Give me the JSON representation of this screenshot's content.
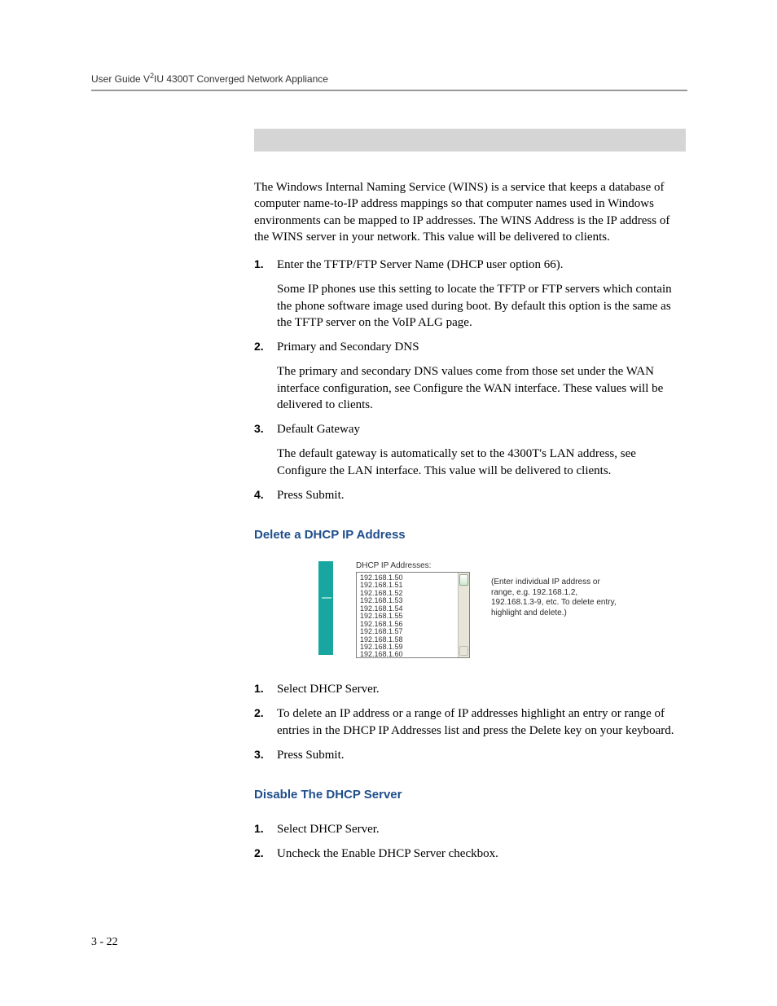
{
  "header": {
    "prefix": "User Guide V",
    "sup": "2",
    "suffix": "IU 4300T Converged Network Appliance"
  },
  "intro": {
    "wins_para": "The Windows Internal Naming Service (WINS) is a service that keeps a database of computer name-to-IP address mappings so that computer names used in Windows environments can be mapped to IP addresses. The WINS Address is the IP address of the WINS server in your network. This value will be delivered to clients."
  },
  "list_a": [
    {
      "num": "1.",
      "paras": [
        "Enter the TFTP/FTP Server Name (DHCP user option 66).",
        "Some IP phones use this setting to locate the TFTP or FTP servers which contain the phone software image used during boot.  By default this option is the same as the TFTP server on the VoIP ALG page."
      ]
    },
    {
      "num": "2.",
      "paras": [
        "Primary and Secondary DNS",
        "The primary and secondary DNS values come from those set under the WAN interface configuration, see Configure the WAN interface. These values will be delivered to clients."
      ]
    },
    {
      "num": "3.",
      "paras": [
        "Default Gateway",
        "The default gateway is automatically set to the 4300T's LAN address, see Configure the LAN interface.  This value will be delivered to clients."
      ]
    },
    {
      "num": "4.",
      "paras": [
        "Press Submit."
      ]
    }
  ],
  "section_delete": {
    "heading": "Delete a DHCP IP Address",
    "listbox_label": "DHCP IP Addresses:",
    "ips": [
      "192.168.1.50",
      "192.168.1.51",
      "192.168.1.52",
      "192.168.1.53",
      "192.168.1.54",
      "192.168.1.55",
      "192.168.1.56",
      "192.168.1.57",
      "192.168.1.58",
      "192.168.1.59",
      "192.168.1.60"
    ],
    "caption": "(Enter individual IP address or range, e.g. 192.168.1.2, 192.168.1.3-9, etc. To delete entry, highlight and delete.)",
    "steps": [
      {
        "num": "1.",
        "text": "Select DHCP Server."
      },
      {
        "num": "2.",
        "text": "To delete an IP address or a range of IP addresses highlight an  entry or range of entries in the DHCP IP Addresses list and press the Delete key on your keyboard."
      },
      {
        "num": "3.",
        "text": "Press Submit."
      }
    ]
  },
  "section_disable": {
    "heading": "Disable The DHCP Server",
    "steps": [
      {
        "num": "1.",
        "text": "Select DHCP Server."
      },
      {
        "num": "2.",
        "text": "Uncheck the Enable DHCP Server checkbox."
      }
    ]
  },
  "page_number": "3 - 22",
  "colors": {
    "heading": "#1f4e8c",
    "teal": "#1aa6a0",
    "rule": "#999999",
    "gray_bar": "#d5d5d5"
  }
}
